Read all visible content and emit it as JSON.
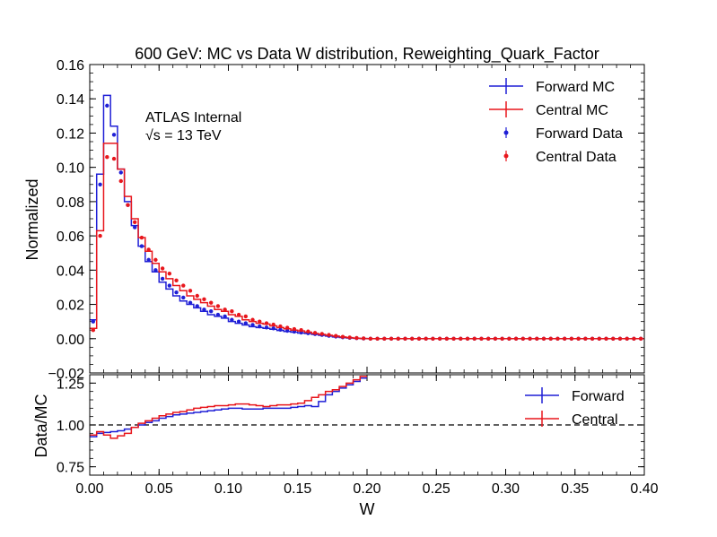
{
  "chart_data": [
    {
      "type": "line",
      "title": "600 GeV: MC vs Data W distribution, Reweighting_Quark_Factor",
      "xlabel": "W",
      "ylabel": "Normalized",
      "xlim": [
        0.0,
        0.4
      ],
      "ylim": [
        -0.02,
        0.16
      ],
      "xticks": [
        "0.00",
        "0.05",
        "0.10",
        "0.15",
        "0.20",
        "0.25",
        "0.30",
        "0.35",
        "0.40"
      ],
      "yticks": [
        "-0.02",
        "0.00",
        "0.02",
        "0.04",
        "0.06",
        "0.08",
        "0.10",
        "0.12",
        "0.14",
        "0.16"
      ],
      "annotations": [
        "ATLAS Internal",
        "√s = 13 TeV"
      ],
      "legend_position": "top-right",
      "grid": false,
      "bin_width": 0.005,
      "x_start": 0.0,
      "series": [
        {
          "name": "Forward MC",
          "style": "step",
          "color": "#1f1fd6",
          "values": [
            0.011,
            0.096,
            0.142,
            0.124,
            0.099,
            0.08,
            0.066,
            0.054,
            0.045,
            0.039,
            0.033,
            0.029,
            0.025,
            0.022,
            0.02,
            0.018,
            0.016,
            0.014,
            0.013,
            0.012,
            0.01,
            0.009,
            0.008,
            0.007,
            0.0065,
            0.006,
            0.0055,
            0.0048,
            0.0042,
            0.0038,
            0.0033,
            0.003,
            0.0025,
            0.002,
            0.0015,
            0.001,
            0.0007,
            0.0004,
            0.0002,
            0.0001,
            0,
            0,
            0,
            0,
            0,
            0,
            0,
            0,
            0,
            0,
            0,
            0,
            0,
            0,
            0,
            0,
            0,
            0,
            0,
            0,
            0,
            0,
            0,
            0,
            0,
            0,
            0,
            0,
            0,
            0,
            0,
            0,
            0,
            0,
            0,
            0,
            0,
            0,
            0,
            0
          ]
        },
        {
          "name": "Central MC",
          "style": "step",
          "color": "#e8161c",
          "values": [
            0.006,
            0.063,
            0.114,
            0.114,
            0.099,
            0.083,
            0.07,
            0.059,
            0.051,
            0.044,
            0.039,
            0.035,
            0.031,
            0.028,
            0.025,
            0.023,
            0.021,
            0.019,
            0.017,
            0.016,
            0.014,
            0.013,
            0.011,
            0.01,
            0.009,
            0.0085,
            0.0075,
            0.0065,
            0.0058,
            0.005,
            0.0045,
            0.0038,
            0.003,
            0.0025,
            0.002,
            0.0015,
            0.001,
            0.0006,
            0.0003,
            0.0001,
            0,
            0,
            0,
            0,
            0,
            0,
            0,
            0,
            0,
            0,
            0,
            0,
            0,
            0,
            0,
            0,
            0,
            0,
            0,
            0,
            0,
            0,
            0,
            0,
            0,
            0,
            0,
            0,
            0,
            0,
            0,
            0,
            0,
            0,
            0,
            0,
            0,
            0,
            0,
            0
          ]
        },
        {
          "name": "Forward Data",
          "style": "points",
          "color": "#1f1fd6",
          "values": [
            0.01,
            0.09,
            0.136,
            0.119,
            0.097,
            0.078,
            0.065,
            0.054,
            0.046,
            0.04,
            0.035,
            0.031,
            0.027,
            0.024,
            0.021,
            0.019,
            0.017,
            0.016,
            0.014,
            0.013,
            0.011,
            0.01,
            0.009,
            0.008,
            0.0072,
            0.0065,
            0.006,
            0.0052,
            0.0046,
            0.0041,
            0.0036,
            0.0032,
            0.0027,
            0.0022,
            0.0017,
            0.0012,
            0.0008,
            0.0005,
            0.0003,
            0.0001,
            0,
            0,
            0,
            0,
            0,
            0,
            0,
            0,
            0,
            0,
            0,
            0,
            0,
            0,
            0,
            0,
            0,
            0,
            0,
            0,
            0,
            0,
            0,
            0,
            0,
            0,
            0,
            0,
            0,
            0,
            0,
            0,
            0,
            0,
            0,
            0,
            0,
            0,
            0,
            0
          ]
        },
        {
          "name": "Central Data",
          "style": "points",
          "color": "#e8161c",
          "values": [
            0.005,
            0.06,
            0.106,
            0.105,
            0.092,
            0.078,
            0.068,
            0.059,
            0.052,
            0.046,
            0.041,
            0.038,
            0.034,
            0.031,
            0.028,
            0.025,
            0.023,
            0.021,
            0.019,
            0.017,
            0.016,
            0.014,
            0.013,
            0.011,
            0.01,
            0.009,
            0.0082,
            0.0072,
            0.0064,
            0.0056,
            0.005,
            0.0042,
            0.0034,
            0.0028,
            0.0022,
            0.0016,
            0.0011,
            0.0007,
            0.0004,
            0.0002,
            0,
            0,
            0,
            0,
            0,
            0,
            0,
            0,
            0,
            0,
            0,
            0,
            0,
            0,
            0,
            0,
            0,
            0,
            0,
            0,
            0,
            0,
            0,
            0,
            0,
            0,
            0,
            0,
            0,
            0,
            0,
            0,
            0,
            0,
            0,
            0,
            0,
            0,
            0,
            0
          ]
        }
      ]
    },
    {
      "type": "line",
      "xlabel": "W",
      "ylabel": "Data/MC",
      "xlim": [
        0.0,
        0.4
      ],
      "ylim": [
        0.7,
        1.3
      ],
      "xticks": [
        "0.00",
        "0.05",
        "0.10",
        "0.15",
        "0.20",
        "0.25",
        "0.30",
        "0.35",
        "0.40"
      ],
      "yticks": [
        "0.75",
        "1.00",
        "1.25"
      ],
      "reference_line": 1.0,
      "legend_position": "top-right",
      "grid": false,
      "bin_width": 0.005,
      "x_start": 0.0,
      "series": [
        {
          "name": "Forward",
          "style": "step",
          "color": "#1f1fd6",
          "values": [
            0.93,
            0.95,
            0.955,
            0.96,
            0.965,
            0.975,
            0.985,
            1.0,
            1.015,
            1.025,
            1.04,
            1.05,
            1.06,
            1.065,
            1.07,
            1.075,
            1.08,
            1.085,
            1.09,
            1.095,
            1.1,
            1.1,
            1.095,
            1.095,
            1.095,
            1.1,
            1.1,
            1.1,
            1.1,
            1.105,
            1.11,
            1.115,
            1.11,
            1.14,
            1.18,
            1.2,
            1.22,
            1.24,
            1.26,
            1.28
          ]
        },
        {
          "name": "Central",
          "style": "step",
          "color": "#e8161c",
          "values": [
            0.94,
            0.96,
            0.94,
            0.92,
            0.935,
            0.95,
            0.985,
            1.01,
            1.025,
            1.04,
            1.055,
            1.065,
            1.075,
            1.08,
            1.09,
            1.1,
            1.105,
            1.11,
            1.115,
            1.115,
            1.12,
            1.125,
            1.125,
            1.12,
            1.115,
            1.11,
            1.115,
            1.12,
            1.12,
            1.125,
            1.13,
            1.145,
            1.165,
            1.18,
            1.2,
            1.21,
            1.23,
            1.25,
            1.27,
            1.29
          ]
        }
      ]
    }
  ]
}
